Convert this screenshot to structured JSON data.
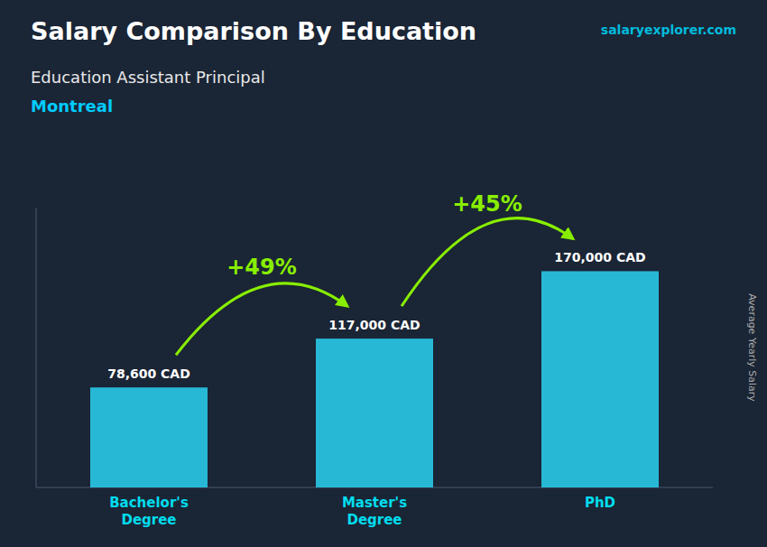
{
  "chart_data": {
    "type": "bar",
    "title": "Salary Comparison By Education",
    "subtitle": [
      "Education Assistant Principal",
      "Montreal"
    ],
    "watermark": "salaryexplorer.com",
    "ylabel": "Average Yearly Salary",
    "categories": [
      "Bachelor's\nDegree",
      "Master's\nDegree",
      "PhD"
    ],
    "values": [
      78600,
      117000,
      170000
    ],
    "value_labels": [
      "78,600 CAD",
      "117,000 CAD",
      "170,000 CAD"
    ],
    "data_labels": true,
    "annotations": [
      "+49%",
      "+45%"
    ],
    "color": "#29c9e8",
    "ylim": [
      0,
      220000
    ],
    "tick_labels": "x",
    "grid": false
  }
}
